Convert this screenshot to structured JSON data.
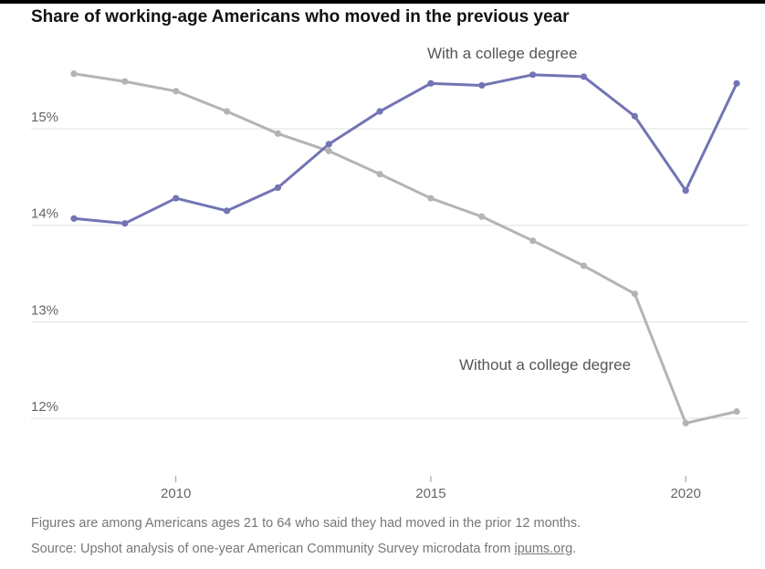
{
  "title": "Share of working-age Americans who moved in the previous year",
  "notes": {
    "line1": "Figures are among Americans ages 21 to 64 who said they had moved in the prior 12 months.",
    "line2_prefix": "Source: Upshot analysis of one-year American Community Survey microdata from ",
    "line2_link": "ipums.org",
    "line2_suffix": "."
  },
  "colors": {
    "college": "#7274b4",
    "no_college": "#b4b4b4",
    "grid": "#e2e2e2",
    "axis": "#999999"
  },
  "chart_data": {
    "type": "line",
    "title": "Share of working-age Americans who moved in the previous year",
    "xlabel": "",
    "ylabel": "",
    "x": [
      2008,
      2009,
      2010,
      2011,
      2012,
      2013,
      2014,
      2015,
      2016,
      2017,
      2018,
      2019,
      2020,
      2021
    ],
    "xticks": [
      2010,
      2015,
      2020
    ],
    "yticks": [
      12,
      13,
      14,
      15
    ],
    "ytick_format": "%",
    "ylim": [
      11.5,
      16
    ],
    "xlim": [
      2008,
      2021
    ],
    "grid": "horizontal",
    "legend": "direct labels",
    "series": [
      {
        "name": "With a college degree",
        "values": [
          14.07,
          14.02,
          14.28,
          14.15,
          14.39,
          14.84,
          15.18,
          15.47,
          15.45,
          15.56,
          15.54,
          15.13,
          14.36,
          15.47
        ]
      },
      {
        "name": "Without a college degree",
        "values": [
          15.57,
          15.49,
          15.39,
          15.18,
          14.95,
          14.77,
          14.53,
          14.28,
          14.09,
          13.84,
          13.58,
          13.29,
          11.95,
          12.07
        ]
      }
    ]
  }
}
